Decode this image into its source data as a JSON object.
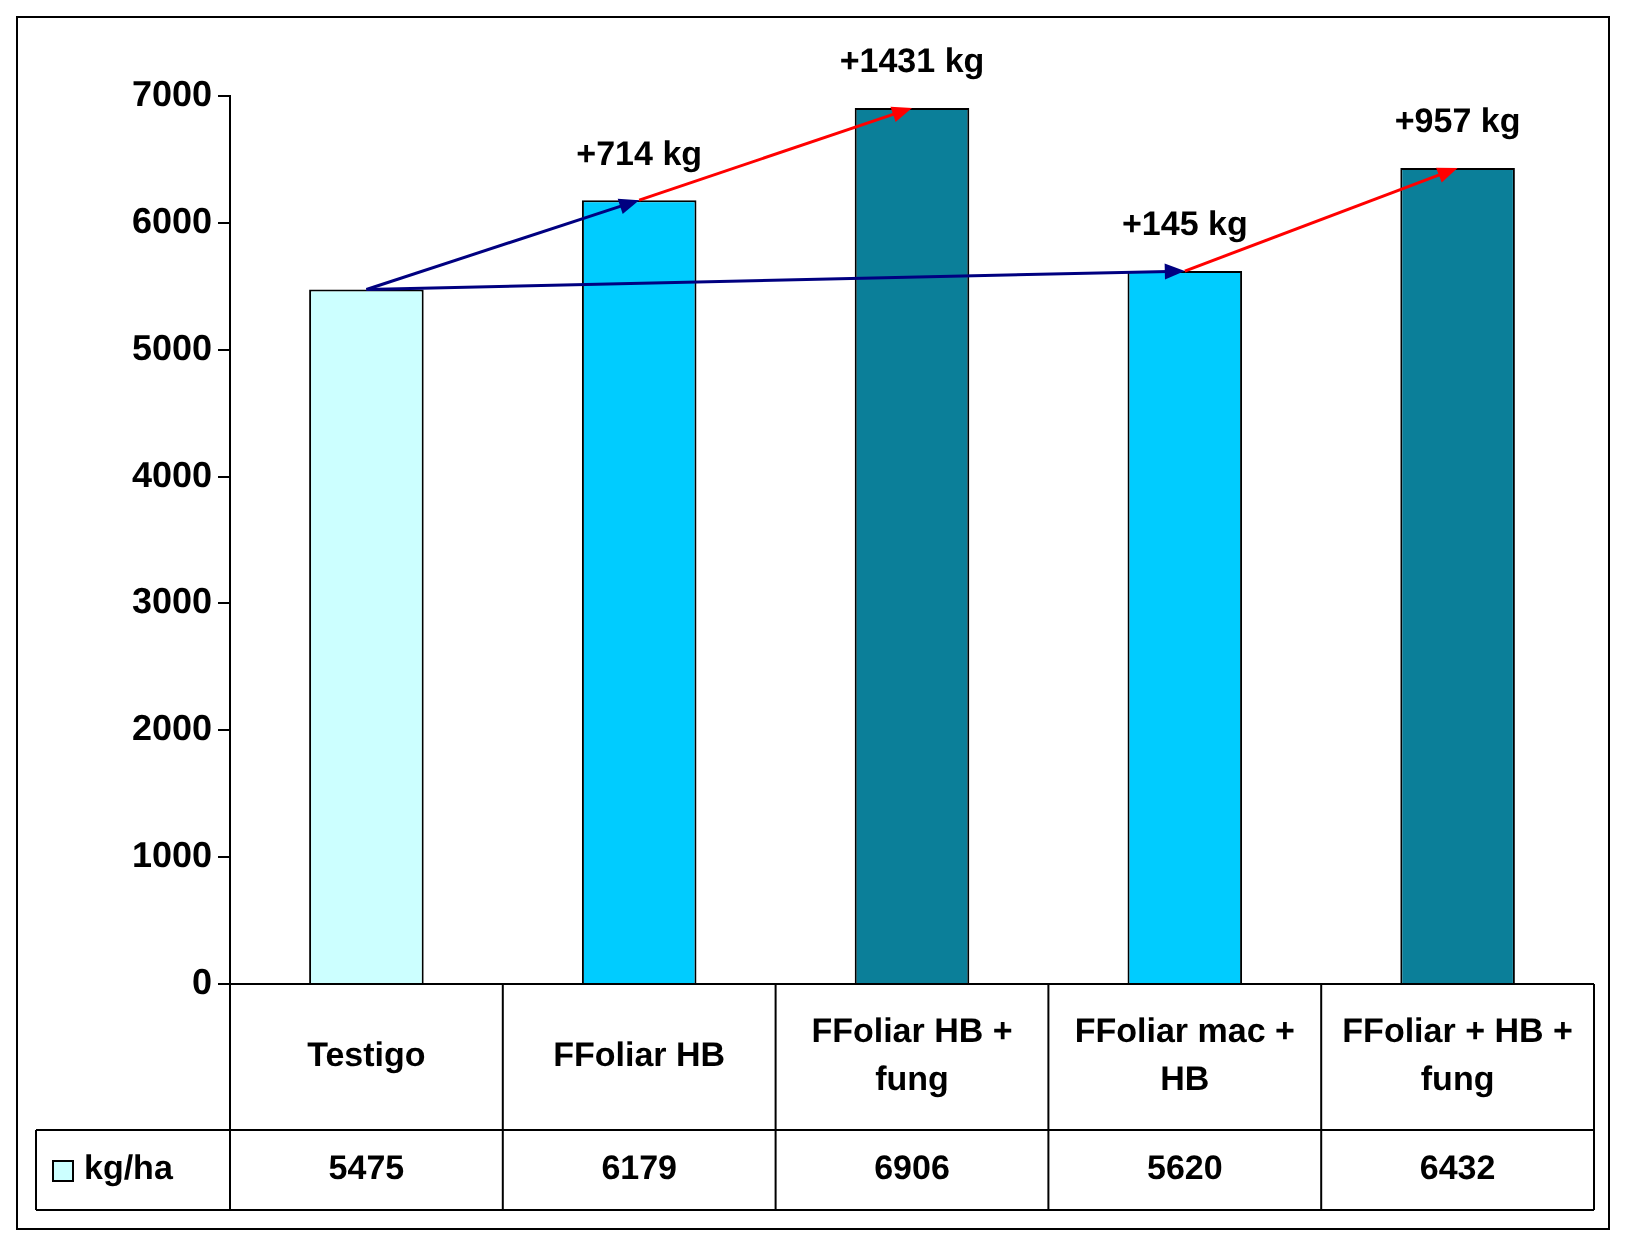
{
  "chart_data": {
    "type": "bar",
    "categories": [
      "Testigo",
      "FFoliar HB",
      "FFoliar HB + fung",
      "FFoliar mac + HB",
      "FFoliar + HB + fung"
    ],
    "series": [
      {
        "name": "kg/ha",
        "color": "#ccffff",
        "colors": [
          "#ccffff",
          "#00ccff",
          "#0b7f99",
          "#00ccff",
          "#0b7f99"
        ],
        "values": [
          5475,
          6179,
          6906,
          5620,
          6432
        ]
      }
    ],
    "ylim": [
      0,
      7000
    ],
    "yticks": [
      0,
      1000,
      2000,
      3000,
      4000,
      5000,
      6000,
      7000
    ],
    "grid": false,
    "legend": "bottom left",
    "data_labels": true,
    "annotations": [
      {
        "text": "+714 kg",
        "x": "FFoliar HB",
        "y": 6179
      },
      {
        "text": "+1431 kg",
        "x": "FFoliar HB + fung",
        "y": 6906
      },
      {
        "text": "+145 kg",
        "x": "FFoliar mac + HB",
        "y": 5620
      },
      {
        "text": "+957 kg",
        "x": "FFoliar + HB + fung",
        "y": 6432
      }
    ]
  }
}
